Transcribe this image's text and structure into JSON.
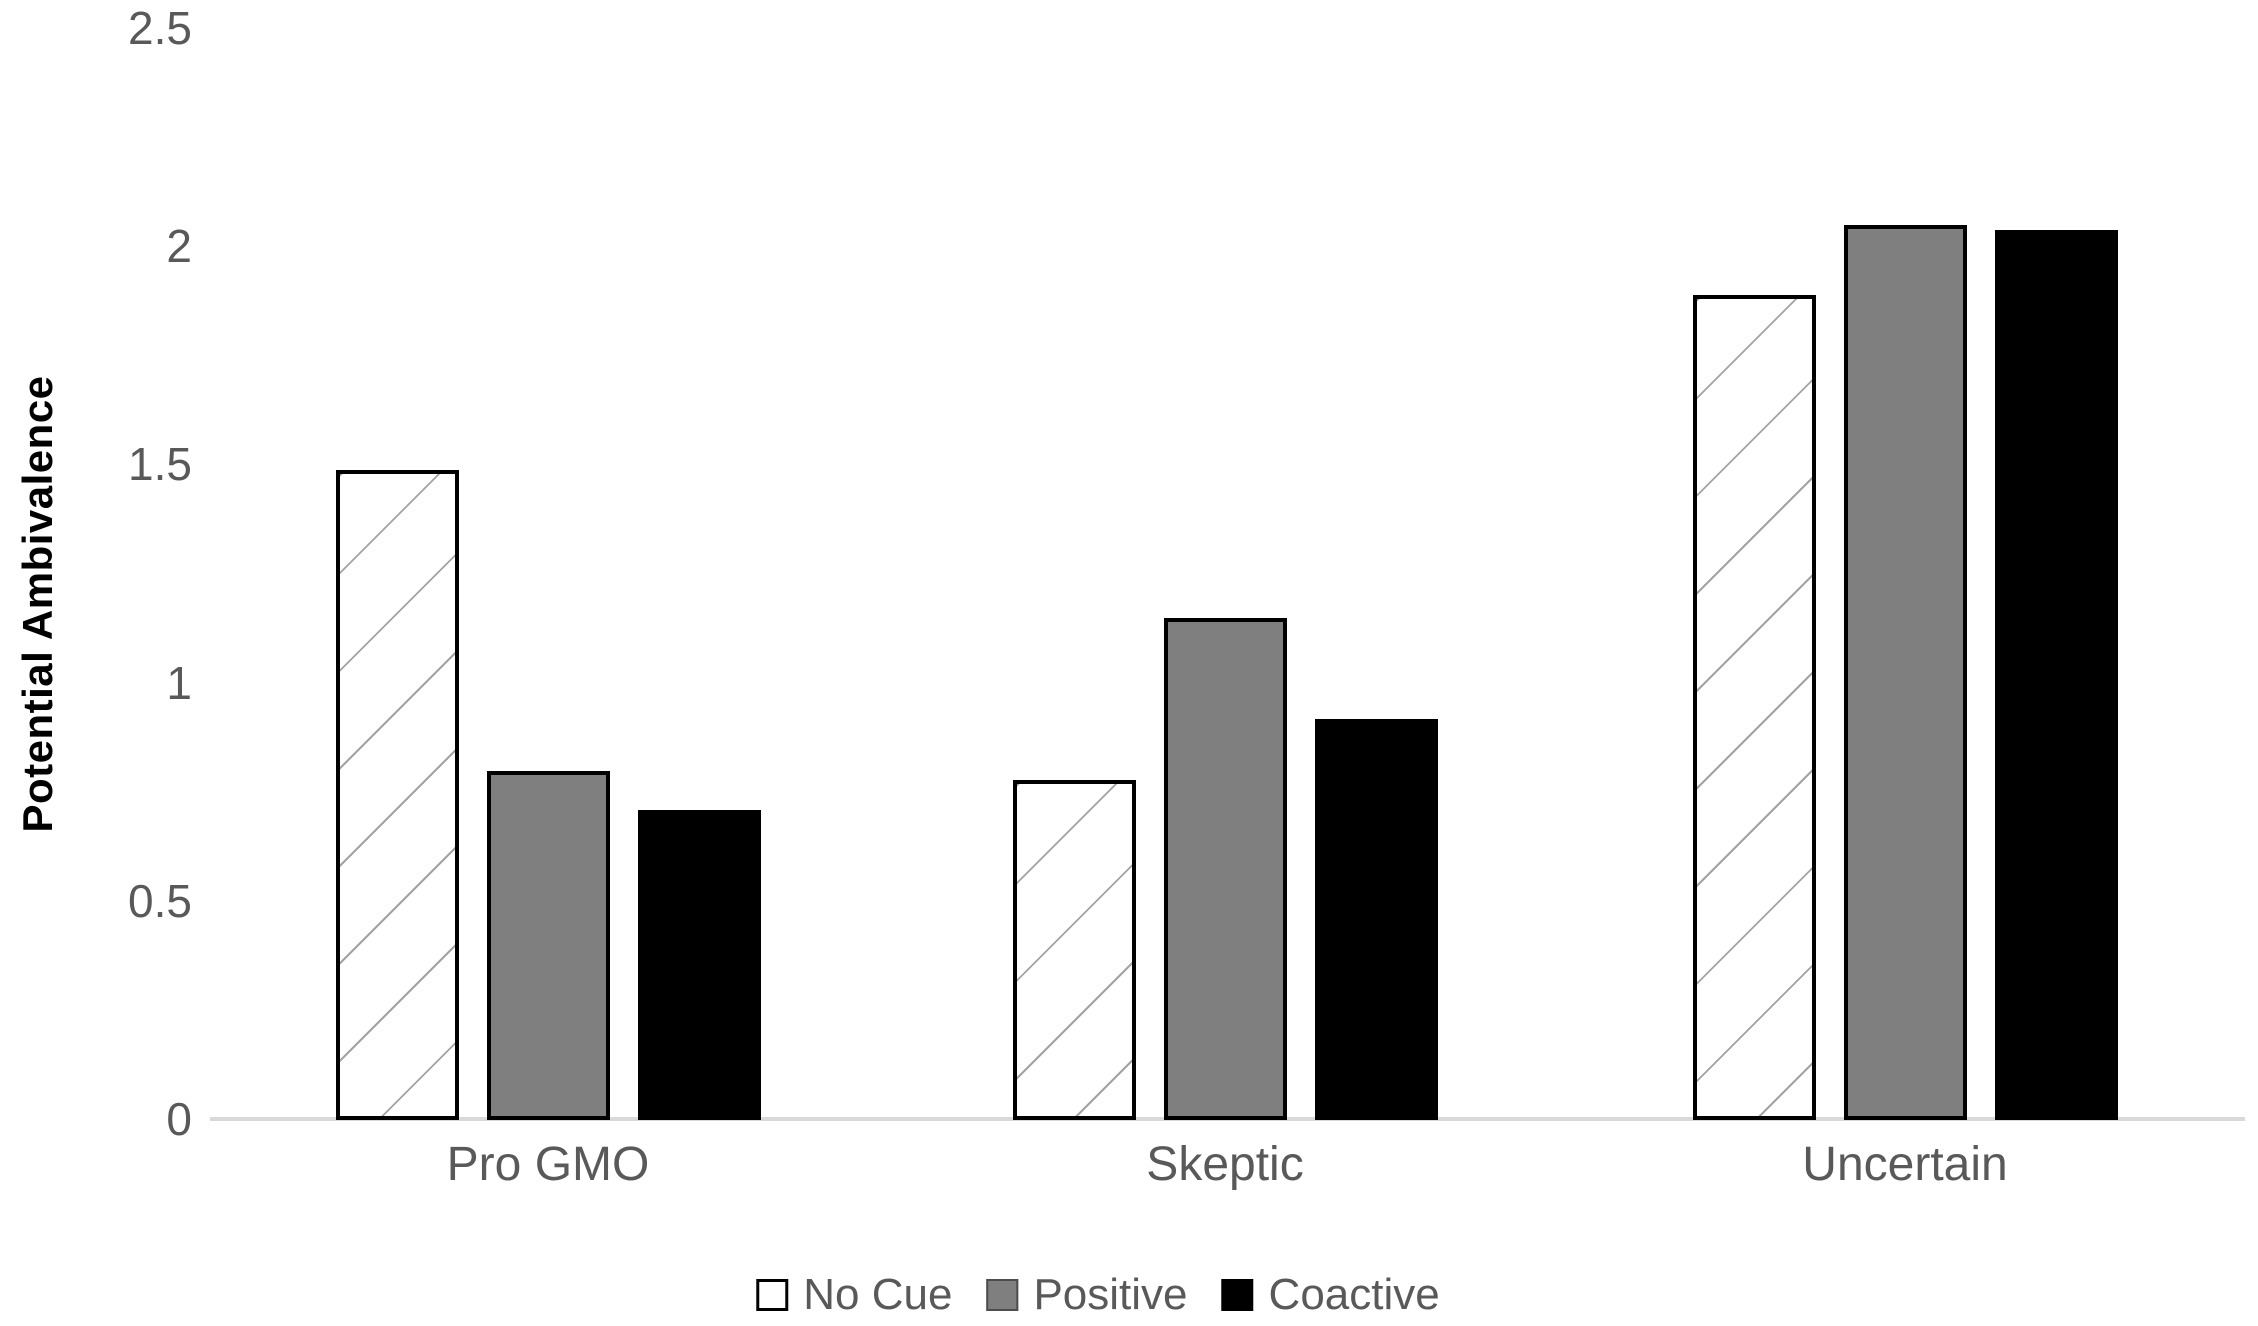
{
  "chart_data": {
    "type": "bar",
    "title": "",
    "xlabel": "",
    "ylabel": "Potential Ambivalence",
    "ylim": [
      0,
      2.5
    ],
    "ytick_values": [
      0,
      0.5,
      1,
      1.5,
      2,
      2.5
    ],
    "ytick_labels": [
      "0",
      "0.5",
      "1",
      "1.5",
      "2",
      "2.5"
    ],
    "categories": [
      "Pro GMO",
      "Skeptic",
      "Uncertain"
    ],
    "series": [
      {
        "name": "No Cue",
        "style": "white-hatched",
        "values": [
          1.49,
          0.78,
          1.89
        ]
      },
      {
        "name": "Positive",
        "style": "gray",
        "values": [
          0.8,
          1.15,
          2.05
        ]
      },
      {
        "name": "Coactive",
        "style": "black",
        "values": [
          0.71,
          0.92,
          2.04
        ]
      }
    ],
    "grid": "off",
    "legend_position": "bottom-center"
  },
  "colors": {
    "white_fill": "#ffffff",
    "gray_fill": "#7f7f7f",
    "black_fill": "#000000",
    "bar_border": "#000000",
    "hatch_line": "#a3a3a3",
    "axis_line": "#d9d9d9",
    "label_text": "#595959",
    "axis_title_text": "#000000"
  }
}
